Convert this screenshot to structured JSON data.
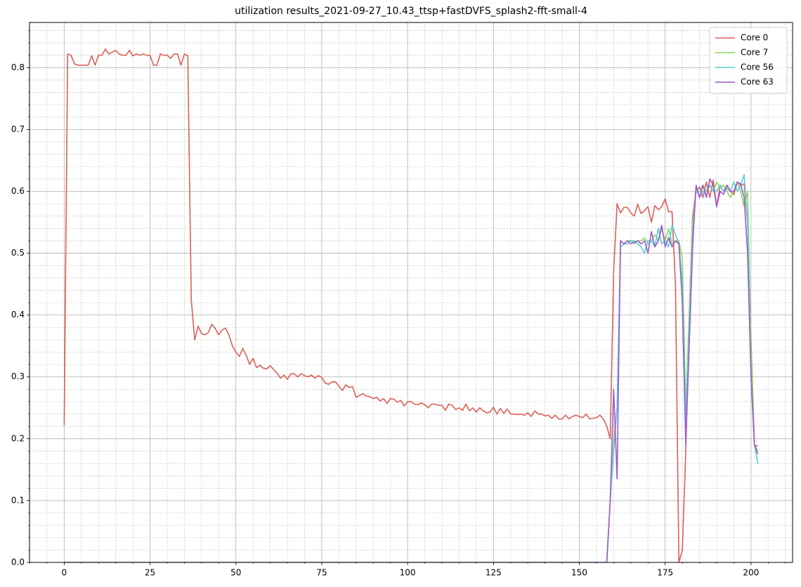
{
  "chart_data": {
    "type": "line",
    "title": "utilization results_2021-09-27_10.43_ttsp+fastDVFS_splash2-fft-small-4",
    "xlim": [
      -10.1,
      212.1
    ],
    "ylim": [
      0,
      0.873
    ],
    "xticks": [
      0,
      25,
      50,
      75,
      100,
      125,
      150,
      175,
      200
    ],
    "yticks": [
      {
        "value": 0,
        "label": "0.0"
      },
      0.1,
      0.2,
      0.3,
      0.4,
      0.5,
      0.6,
      0.7,
      0.8
    ],
    "xticks_minor": [
      -10,
      -5,
      5,
      10,
      15,
      20,
      30,
      35,
      40,
      45,
      55,
      60,
      65,
      70,
      80,
      85,
      90,
      95,
      105,
      110,
      115,
      120,
      130,
      135,
      140,
      145,
      155,
      160,
      165,
      170,
      180,
      185,
      190,
      195,
      205,
      210
    ],
    "yticks_minor": [
      0.02,
      0.04,
      0.06,
      0.08,
      0.12,
      0.14,
      0.16,
      0.18,
      0.22,
      0.24,
      0.26,
      0.28,
      0.32,
      0.34,
      0.36,
      0.38,
      0.42,
      0.44,
      0.46,
      0.48,
      0.52,
      0.54,
      0.56,
      0.58,
      0.62,
      0.64,
      0.66,
      0.68,
      0.72,
      0.74,
      0.76,
      0.78,
      0.82,
      0.84,
      0.86
    ],
    "grid": true,
    "minor_grid": true,
    "legend": "upper right",
    "x": [
      0,
      1,
      2,
      3,
      4,
      5,
      6,
      7,
      8,
      9,
      10,
      11,
      12,
      13,
      14,
      15,
      16,
      17,
      18,
      19,
      20,
      21,
      22,
      23,
      24,
      25,
      26,
      27,
      28,
      29,
      30,
      31,
      32,
      33,
      34,
      35,
      36,
      37,
      38,
      39,
      40,
      41,
      42,
      43,
      44,
      45,
      46,
      47,
      48,
      49,
      50,
      51,
      52,
      53,
      54,
      55,
      56,
      57,
      58,
      59,
      60,
      61,
      62,
      63,
      64,
      65,
      66,
      67,
      68,
      69,
      70,
      71,
      72,
      73,
      74,
      75,
      76,
      77,
      78,
      79,
      80,
      81,
      82,
      83,
      84,
      85,
      86,
      87,
      88,
      89,
      90,
      91,
      92,
      93,
      94,
      95,
      96,
      97,
      98,
      99,
      100,
      101,
      102,
      103,
      104,
      105,
      106,
      107,
      108,
      109,
      110,
      111,
      112,
      113,
      114,
      115,
      116,
      117,
      118,
      119,
      120,
      121,
      122,
      123,
      124,
      125,
      126,
      127,
      128,
      129,
      130,
      131,
      132,
      133,
      134,
      135,
      136,
      137,
      138,
      139,
      140,
      141,
      142,
      143,
      144,
      145,
      146,
      147,
      148,
      149,
      150,
      151,
      152,
      153,
      154,
      155,
      156,
      157,
      158,
      159,
      160,
      161,
      162,
      163,
      164,
      165,
      166,
      167,
      168,
      169,
      170,
      171,
      172,
      173,
      174,
      175,
      176,
      177,
      178,
      179,
      180,
      181,
      182,
      183,
      184,
      185,
      186,
      187,
      188,
      189,
      190,
      191,
      192,
      193,
      194,
      195,
      196,
      197,
      198,
      199,
      200,
      201,
      202
    ],
    "series": [
      {
        "name": "Core 0",
        "color": "#db5f57",
        "values": [
          0.222,
          0.822,
          0.82,
          0.806,
          0.804,
          0.804,
          0.804,
          0.804,
          0.819,
          0.804,
          0.82,
          0.82,
          0.83,
          0.822,
          0.825,
          0.828,
          0.822,
          0.82,
          0.82,
          0.828,
          0.819,
          0.822,
          0.82,
          0.822,
          0.82,
          0.82,
          0.804,
          0.804,
          0.822,
          0.82,
          0.82,
          0.815,
          0.822,
          0.822,
          0.804,
          0.822,
          0.819,
          0.425,
          0.36,
          0.382,
          0.37,
          0.368,
          0.372,
          0.385,
          0.378,
          0.368,
          0.376,
          0.379,
          0.367,
          0.35,
          0.34,
          0.333,
          0.346,
          0.335,
          0.32,
          0.33,
          0.315,
          0.319,
          0.314,
          0.313,
          0.318,
          0.312,
          0.306,
          0.298,
          0.303,
          0.296,
          0.305,
          0.305,
          0.3,
          0.305,
          0.302,
          0.3,
          0.303,
          0.298,
          0.302,
          0.299,
          0.29,
          0.288,
          0.292,
          0.292,
          0.285,
          0.278,
          0.287,
          0.283,
          0.284,
          0.267,
          0.27,
          0.273,
          0.269,
          0.268,
          0.265,
          0.267,
          0.261,
          0.265,
          0.257,
          0.265,
          0.264,
          0.259,
          0.262,
          0.253,
          0.26,
          0.26,
          0.256,
          0.255,
          0.258,
          0.255,
          0.25,
          0.256,
          0.256,
          0.254,
          0.254,
          0.246,
          0.256,
          0.254,
          0.247,
          0.25,
          0.246,
          0.256,
          0.245,
          0.25,
          0.243,
          0.25,
          0.245,
          0.242,
          0.243,
          0.251,
          0.24,
          0.249,
          0.241,
          0.248,
          0.24,
          0.24,
          0.239,
          0.24,
          0.238,
          0.242,
          0.236,
          0.245,
          0.24,
          0.24,
          0.237,
          0.238,
          0.233,
          0.238,
          0.232,
          0.232,
          0.238,
          0.232,
          0.236,
          0.238,
          0.236,
          0.234,
          0.24,
          0.232,
          0.233,
          0.234,
          0.238,
          0.232,
          0.22,
          0.2,
          0.47,
          0.58,
          0.565,
          0.574,
          0.574,
          0.565,
          0.56,
          0.579,
          0.564,
          0.569,
          0.575,
          0.55,
          0.577,
          0.57,
          0.575,
          0.588,
          0.567,
          0.567,
          0.45,
          0.0,
          0.02,
          0.18,
          0.4,
          0.56,
          0.6,
          0.607,
          0.59,
          0.615,
          0.59,
          0.618,
          0.575,
          0.61,
          0.6,
          0.61,
          0.6,
          0.595,
          0.615,
          0.61,
          0.612,
          0.55,
          0.36,
          0.19,
          0.188
        ]
      },
      {
        "name": "Core 7",
        "color": "#86d95a",
        "values": [
          0,
          0,
          0,
          0,
          0,
          0,
          0,
          0,
          0,
          0,
          0,
          0,
          0,
          0,
          0,
          0,
          0,
          0,
          0,
          0,
          0,
          0,
          0,
          0,
          0,
          0,
          0,
          0,
          0,
          0,
          0,
          0,
          0,
          0,
          0,
          0,
          0,
          0,
          0,
          0,
          0,
          0,
          0,
          0,
          0,
          0,
          0,
          0,
          0,
          0,
          0,
          0,
          0,
          0,
          0,
          0,
          0,
          0,
          0,
          0,
          0,
          0,
          0,
          0,
          0,
          0,
          0,
          0,
          0,
          0,
          0,
          0,
          0,
          0,
          0,
          0,
          0,
          0,
          0,
          0,
          0,
          0,
          0,
          0,
          0,
          0,
          0,
          0,
          0,
          0,
          0,
          0,
          0,
          0,
          0,
          0,
          0,
          0,
          0,
          0,
          0,
          0,
          0,
          0,
          0,
          0,
          0,
          0,
          0,
          0,
          0,
          0,
          0,
          0,
          0,
          0,
          0,
          0,
          0,
          0,
          0,
          0,
          0,
          0,
          0,
          0,
          0,
          0,
          0,
          0,
          0,
          0,
          0,
          0,
          0,
          0,
          0,
          0,
          0,
          0,
          0,
          0,
          0,
          0,
          0,
          0,
          0,
          0,
          0,
          0,
          0,
          0,
          0,
          0,
          0,
          0,
          0,
          0,
          0,
          0.1,
          0.2,
          0.25,
          0.52,
          0.515,
          0.52,
          0.52,
          0.515,
          0.52,
          0.52,
          0.525,
          0.515,
          0.52,
          0.53,
          0.52,
          0.54,
          0.52,
          0.54,
          0.515,
          0.52,
          0.52,
          0.49,
          0.25,
          0.4,
          0.55,
          0.6,
          0.6,
          0.61,
          0.6,
          0.61,
          0.6,
          0.615,
          0.605,
          0.61,
          0.6,
          0.59,
          0.6,
          0.615,
          0.6,
          0.575,
          0.6,
          0.35,
          0.19,
          0.18
        ]
      },
      {
        "name": "Core 56",
        "color": "#57cfdb",
        "values": [
          0,
          0,
          0,
          0,
          0,
          0,
          0,
          0,
          0,
          0,
          0,
          0,
          0,
          0,
          0,
          0,
          0,
          0,
          0,
          0,
          0,
          0,
          0,
          0,
          0,
          0,
          0,
          0,
          0,
          0,
          0,
          0,
          0,
          0,
          0,
          0,
          0,
          0,
          0,
          0,
          0,
          0,
          0,
          0,
          0,
          0,
          0,
          0,
          0,
          0,
          0,
          0,
          0,
          0,
          0,
          0,
          0,
          0,
          0,
          0,
          0,
          0,
          0,
          0,
          0,
          0,
          0,
          0,
          0,
          0,
          0,
          0,
          0,
          0,
          0,
          0,
          0,
          0,
          0,
          0,
          0,
          0,
          0,
          0,
          0,
          0,
          0,
          0,
          0,
          0,
          0,
          0,
          0,
          0,
          0,
          0,
          0,
          0,
          0,
          0,
          0,
          0,
          0,
          0,
          0,
          0,
          0,
          0,
          0,
          0,
          0,
          0,
          0,
          0,
          0,
          0,
          0,
          0,
          0,
          0,
          0,
          0,
          0,
          0,
          0,
          0,
          0,
          0,
          0,
          0,
          0,
          0,
          0,
          0,
          0,
          0,
          0,
          0,
          0,
          0,
          0,
          0,
          0,
          0,
          0,
          0,
          0,
          0,
          0,
          0,
          0,
          0,
          0,
          0,
          0,
          0,
          0,
          0,
          0,
          0.1,
          0.18,
          0.25,
          0.51,
          0.515,
          0.515,
          0.52,
          0.52,
          0.515,
          0.51,
          0.5,
          0.52,
          0.52,
          0.51,
          0.54,
          0.515,
          0.52,
          0.51,
          0.545,
          0.53,
          0.515,
          0.45,
          0.22,
          0.38,
          0.53,
          0.605,
          0.59,
          0.6,
          0.595,
          0.61,
          0.6,
          0.6,
          0.61,
          0.6,
          0.605,
          0.6,
          0.615,
          0.6,
          0.61,
          0.627,
          0.55,
          0.3,
          0.19,
          0.16
        ]
      },
      {
        "name": "Core 63",
        "color": "#a157d0",
        "values": [
          0,
          0,
          0,
          0,
          0,
          0,
          0,
          0,
          0,
          0,
          0,
          0,
          0,
          0,
          0,
          0,
          0,
          0,
          0,
          0,
          0,
          0,
          0,
          0,
          0,
          0,
          0,
          0,
          0,
          0,
          0,
          0,
          0,
          0,
          0,
          0,
          0,
          0,
          0,
          0,
          0,
          0,
          0,
          0,
          0,
          0,
          0,
          0,
          0,
          0,
          0,
          0,
          0,
          0,
          0,
          0,
          0,
          0,
          0,
          0,
          0,
          0,
          0,
          0,
          0,
          0,
          0,
          0,
          0,
          0,
          0,
          0,
          0,
          0,
          0,
          0,
          0,
          0,
          0,
          0,
          0,
          0,
          0,
          0,
          0,
          0,
          0,
          0,
          0,
          0,
          0,
          0,
          0,
          0,
          0,
          0,
          0,
          0,
          0,
          0,
          0,
          0,
          0,
          0,
          0,
          0,
          0,
          0,
          0,
          0,
          0,
          0,
          0,
          0,
          0,
          0,
          0,
          0,
          0,
          0,
          0,
          0,
          0,
          0,
          0,
          0,
          0,
          0,
          0,
          0,
          0,
          0,
          0,
          0,
          0,
          0,
          0,
          0,
          0,
          0,
          0,
          0,
          0,
          0,
          0,
          0,
          0,
          0,
          0,
          0,
          0,
          0,
          0,
          0,
          0,
          0,
          0,
          0,
          0,
          0.1,
          0.28,
          0.135,
          0.52,
          0.515,
          0.52,
          0.515,
          0.518,
          0.52,
          0.515,
          0.52,
          0.5,
          0.535,
          0.51,
          0.52,
          0.545,
          0.51,
          0.525,
          0.51,
          0.52,
          0.515,
          0.42,
          0.19,
          0.35,
          0.51,
          0.61,
          0.59,
          0.61,
          0.59,
          0.62,
          0.61,
          0.575,
          0.6,
          0.595,
          0.61,
          0.6,
          0.6,
          0.615,
          0.612,
          0.59,
          0.5,
          0.3,
          0.19,
          0.175
        ]
      }
    ]
  }
}
